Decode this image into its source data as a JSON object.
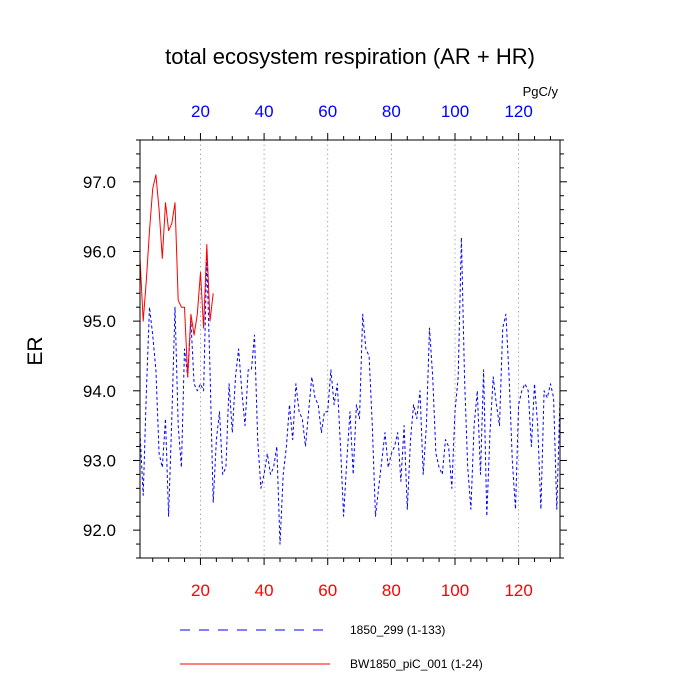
{
  "chart_data": {
    "type": "line",
    "title": "total ecosystem respiration (AR + HR)",
    "units": "PgC/y",
    "ylabel": "ER",
    "xlabel": "",
    "xlim": [
      1,
      133
    ],
    "ylim": [
      91.6,
      97.6
    ],
    "x_ticks": [
      20,
      40,
      60,
      80,
      100,
      120
    ],
    "x_tick_labels": [
      "20",
      "40",
      "60",
      "80",
      "100",
      "120"
    ],
    "y_ticks": [
      92.0,
      93.0,
      94.0,
      95.0,
      96.0,
      97.0
    ],
    "y_tick_labels": [
      "92.0",
      "93.0",
      "94.0",
      "95.0",
      "96.0",
      "97.0"
    ],
    "x_tick_colors": {
      "bottom": "#ff0000",
      "top": "#0000ff"
    },
    "gridlines": "vertical dotted at x ticks",
    "legend_position": "bottom",
    "series": [
      {
        "name": "1850_299 (1-133)",
        "color": "#0000ff",
        "style": "dashed",
        "x": [
          1,
          2,
          3,
          4,
          5,
          6,
          7,
          8,
          9,
          10,
          11,
          12,
          13,
          14,
          15,
          16,
          17,
          18,
          19,
          20,
          21,
          22,
          23,
          24,
          25,
          26,
          27,
          28,
          29,
          30,
          31,
          32,
          33,
          34,
          35,
          36,
          37,
          38,
          39,
          40,
          41,
          42,
          43,
          44,
          45,
          46,
          47,
          48,
          49,
          50,
          51,
          52,
          53,
          54,
          55,
          56,
          57,
          58,
          59,
          60,
          61,
          62,
          63,
          64,
          65,
          66,
          67,
          68,
          69,
          70,
          71,
          72,
          73,
          74,
          75,
          76,
          77,
          78,
          79,
          80,
          81,
          82,
          83,
          84,
          85,
          86,
          87,
          88,
          89,
          90,
          91,
          92,
          93,
          94,
          95,
          96,
          97,
          98,
          99,
          100,
          101,
          102,
          103,
          104,
          105,
          106,
          107,
          108,
          109,
          110,
          111,
          112,
          113,
          114,
          115,
          116,
          117,
          118,
          119,
          120,
          121,
          122,
          123,
          124,
          125,
          126,
          127,
          128,
          129,
          130,
          131,
          132,
          133
        ],
        "values": [
          93.4,
          92.5,
          94.0,
          95.2,
          94.8,
          94.3,
          93.1,
          92.9,
          93.6,
          92.2,
          93.6,
          95.2,
          93.5,
          92.9,
          94.6,
          94.2,
          95.0,
          94.1,
          94.0,
          94.1,
          94.0,
          95.9,
          94.3,
          92.4,
          93.3,
          93.7,
          92.8,
          92.9,
          94.1,
          93.4,
          94.2,
          94.6,
          94.0,
          93.5,
          94.3,
          94.3,
          94.8,
          93.3,
          92.6,
          92.8,
          93.1,
          92.8,
          92.9,
          93.2,
          91.8,
          92.8,
          93.2,
          93.8,
          93.3,
          94.1,
          93.7,
          93.6,
          93.2,
          93.7,
          94.2,
          93.9,
          93.8,
          93.4,
          93.7,
          93.7,
          94.3,
          93.8,
          94.1,
          93.2,
          92.2,
          93.0,
          93.7,
          92.8,
          93.8,
          93.6,
          95.1,
          94.6,
          94.5,
          93.5,
          92.2,
          92.6,
          93.0,
          93.4,
          92.9,
          93.1,
          93.2,
          93.4,
          92.7,
          93.5,
          92.3,
          93.3,
          93.8,
          93.6,
          94.0,
          92.8,
          93.5,
          94.9,
          94.2,
          93.1,
          92.9,
          92.8,
          93.3,
          93.2,
          92.6,
          93.7,
          94.2,
          96.2,
          94.2,
          92.9,
          92.3,
          93.5,
          94.0,
          92.8,
          94.3,
          92.2,
          93.4,
          94.2,
          93.8,
          93.5,
          94.9,
          95.1,
          94.2,
          93.0,
          92.3,
          93.8,
          94.0,
          94.1,
          94.0,
          93.2,
          94.1,
          93.5,
          92.3,
          94.0,
          93.9,
          94.1,
          93.9,
          92.3,
          93.9
        ],
        "legend_label": "1850_299 (1-133)"
      },
      {
        "name": "BW1850_piC_001 (1-24)",
        "color": "#ff0000",
        "style": "solid",
        "x": [
          1,
          2,
          3,
          4,
          5,
          6,
          7,
          8,
          9,
          10,
          11,
          12,
          13,
          14,
          15,
          16,
          17,
          18,
          19,
          20,
          21,
          22,
          23,
          24
        ],
        "values": [
          95.9,
          95.0,
          95.6,
          96.3,
          96.9,
          97.1,
          96.6,
          95.9,
          96.7,
          96.3,
          96.4,
          96.7,
          95.3,
          95.2,
          95.2,
          94.2,
          95.1,
          94.8,
          95.1,
          95.7,
          94.9,
          96.1,
          95.0,
          95.4
        ],
        "legend_label": "BW1850_piC_001 (1-24)"
      }
    ]
  }
}
